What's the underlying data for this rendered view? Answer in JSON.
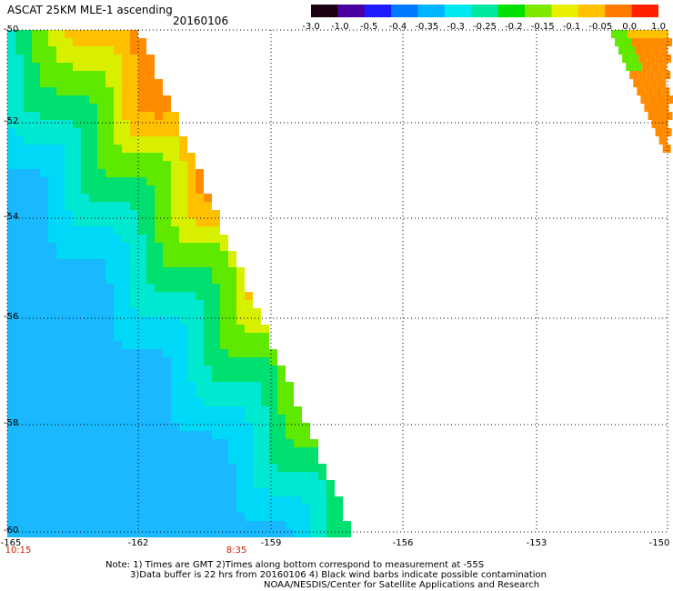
{
  "header": {
    "title": "ASCAT 25KM MLE-1 ascending",
    "date": "20160106"
  },
  "colorbar": {
    "labels": [
      "-3.0",
      "-1.0",
      "-0.5",
      "-0.4",
      "-0.35",
      "-0.3",
      "-0.25",
      "-0.2",
      "-0.15",
      "-0.1",
      "-0.05",
      "0.0",
      "1.0"
    ],
    "colors": [
      "#1a0010",
      "#4a00a0",
      "#1c1cff",
      "#007bff",
      "#00b4ff",
      "#00e8f0",
      "#00e8a0",
      "#00e000",
      "#7fe800",
      "#e8f000",
      "#ffc000",
      "#ff7b00",
      "#ff2000"
    ]
  },
  "axes": {
    "lat_labels": [
      "-50",
      "-52",
      "-54",
      "-56",
      "-58",
      "-60"
    ],
    "lon_labels": [
      "-165",
      "-162",
      "-159",
      "-156",
      "-153",
      "-150"
    ]
  },
  "times": [
    "10:15",
    "8:35"
  ],
  "notes": {
    "line1": "Note: 1) Times are GMT 2)Times along bottom correspond to measurement at -55S",
    "line2": "3)Data buffer is 22 hrs from 20160106 4) Black wind barbs indicate possible contamination",
    "line3": "NOAA/NESDIS/Center for Satellite Applications and Research"
  }
}
